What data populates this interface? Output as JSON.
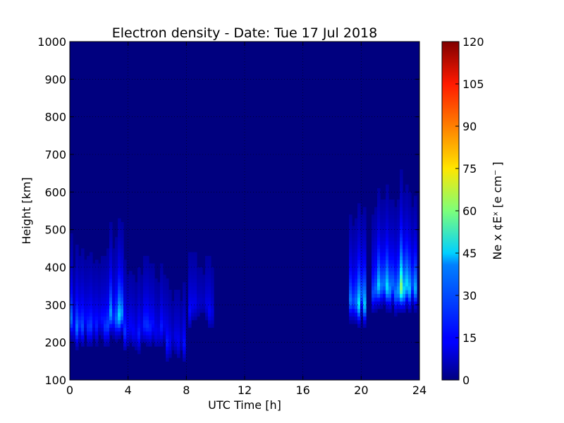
{
  "chart_data": {
    "type": "heatmap",
    "title": "Electron density - Date: Tue 17 Jul 2018",
    "xlabel": "UTC Time [h]",
    "ylabel": "Height [km]",
    "colorbar_label": "Ne x ¢Eˣ  [e cm⁻ ]",
    "xlim": [
      0,
      24
    ],
    "ylim": [
      100,
      1000
    ],
    "x_ticks": [
      "0",
      "4",
      "8",
      "12",
      "16",
      "20",
      "24"
    ],
    "y_ticks": [
      "100",
      "200",
      "300",
      "400",
      "500",
      "600",
      "700",
      "800",
      "900",
      "1000"
    ],
    "colorbar_range": [
      0,
      120
    ],
    "colorbar_ticks": [
      "0",
      "15",
      "30",
      "45",
      "60",
      "75",
      "90",
      "105",
      "120"
    ],
    "colormap": "jet",
    "grid": true,
    "background_color": "#00007f",
    "features": [
      {
        "x_start": 0,
        "x_end": 2.8,
        "peak_height": 255,
        "max_value": 30
      },
      {
        "x_start": 2.6,
        "x_end": 3.6,
        "peak_height": 280,
        "max_value": 40
      },
      {
        "x_start": 3.6,
        "x_end": 6.6,
        "peak_height": 240,
        "max_value": 22
      },
      {
        "x_start": 6.6,
        "x_end": 8.0,
        "peak_height": 210,
        "max_value": 18
      },
      {
        "x_start": 8.2,
        "x_end": 9.8,
        "peak_height": 300,
        "max_value": 16
      },
      {
        "x_start": 19.2,
        "x_end": 20.4,
        "peak_height": 320,
        "max_value": 50
      },
      {
        "x_start": 20.8,
        "x_end": 23.8,
        "peak_height": 350,
        "max_value": 63
      }
    ]
  }
}
